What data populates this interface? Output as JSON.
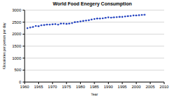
{
  "chart_data": {
    "type": "line",
    "title": "World Food Enegery Consumption",
    "x_label": "Year",
    "y_label": "Kilocalories per person per day",
    "x": [
      1961,
      1962,
      1963,
      1964,
      1965,
      1966,
      1967,
      1968,
      1969,
      1970,
      1971,
      1972,
      1973,
      1974,
      1975,
      1976,
      1977,
      1978,
      1979,
      1980,
      1981,
      1982,
      1983,
      1984,
      1985,
      1986,
      1987,
      1988,
      1989,
      1990,
      1991,
      1992,
      1993,
      1994,
      1995,
      1996,
      1997,
      1998,
      1999,
      2000,
      2001,
      2002,
      2003
    ],
    "values": [
      2250,
      2280,
      2300,
      2340,
      2330,
      2370,
      2380,
      2400,
      2400,
      2410,
      2420,
      2400,
      2440,
      2440,
      2430,
      2440,
      2460,
      2500,
      2510,
      2530,
      2550,
      2570,
      2580,
      2610,
      2630,
      2650,
      2650,
      2660,
      2680,
      2700,
      2690,
      2700,
      2710,
      2720,
      2720,
      2740,
      2750,
      2760,
      2780,
      2780,
      2790,
      2800,
      2810
    ],
    "color": "#1f3fbf",
    "marker": "circle",
    "line_style": "dotted",
    "xlim": [
      1960,
      2010
    ],
    "xticks": [
      1960,
      1965,
      1970,
      1975,
      1980,
      1985,
      1990,
      1995,
      2000,
      2005,
      2010
    ],
    "ylim": [
      0,
      3000
    ],
    "yticks": [
      0,
      500,
      1000,
      1500,
      2000,
      2500,
      3000
    ],
    "grid": true
  }
}
